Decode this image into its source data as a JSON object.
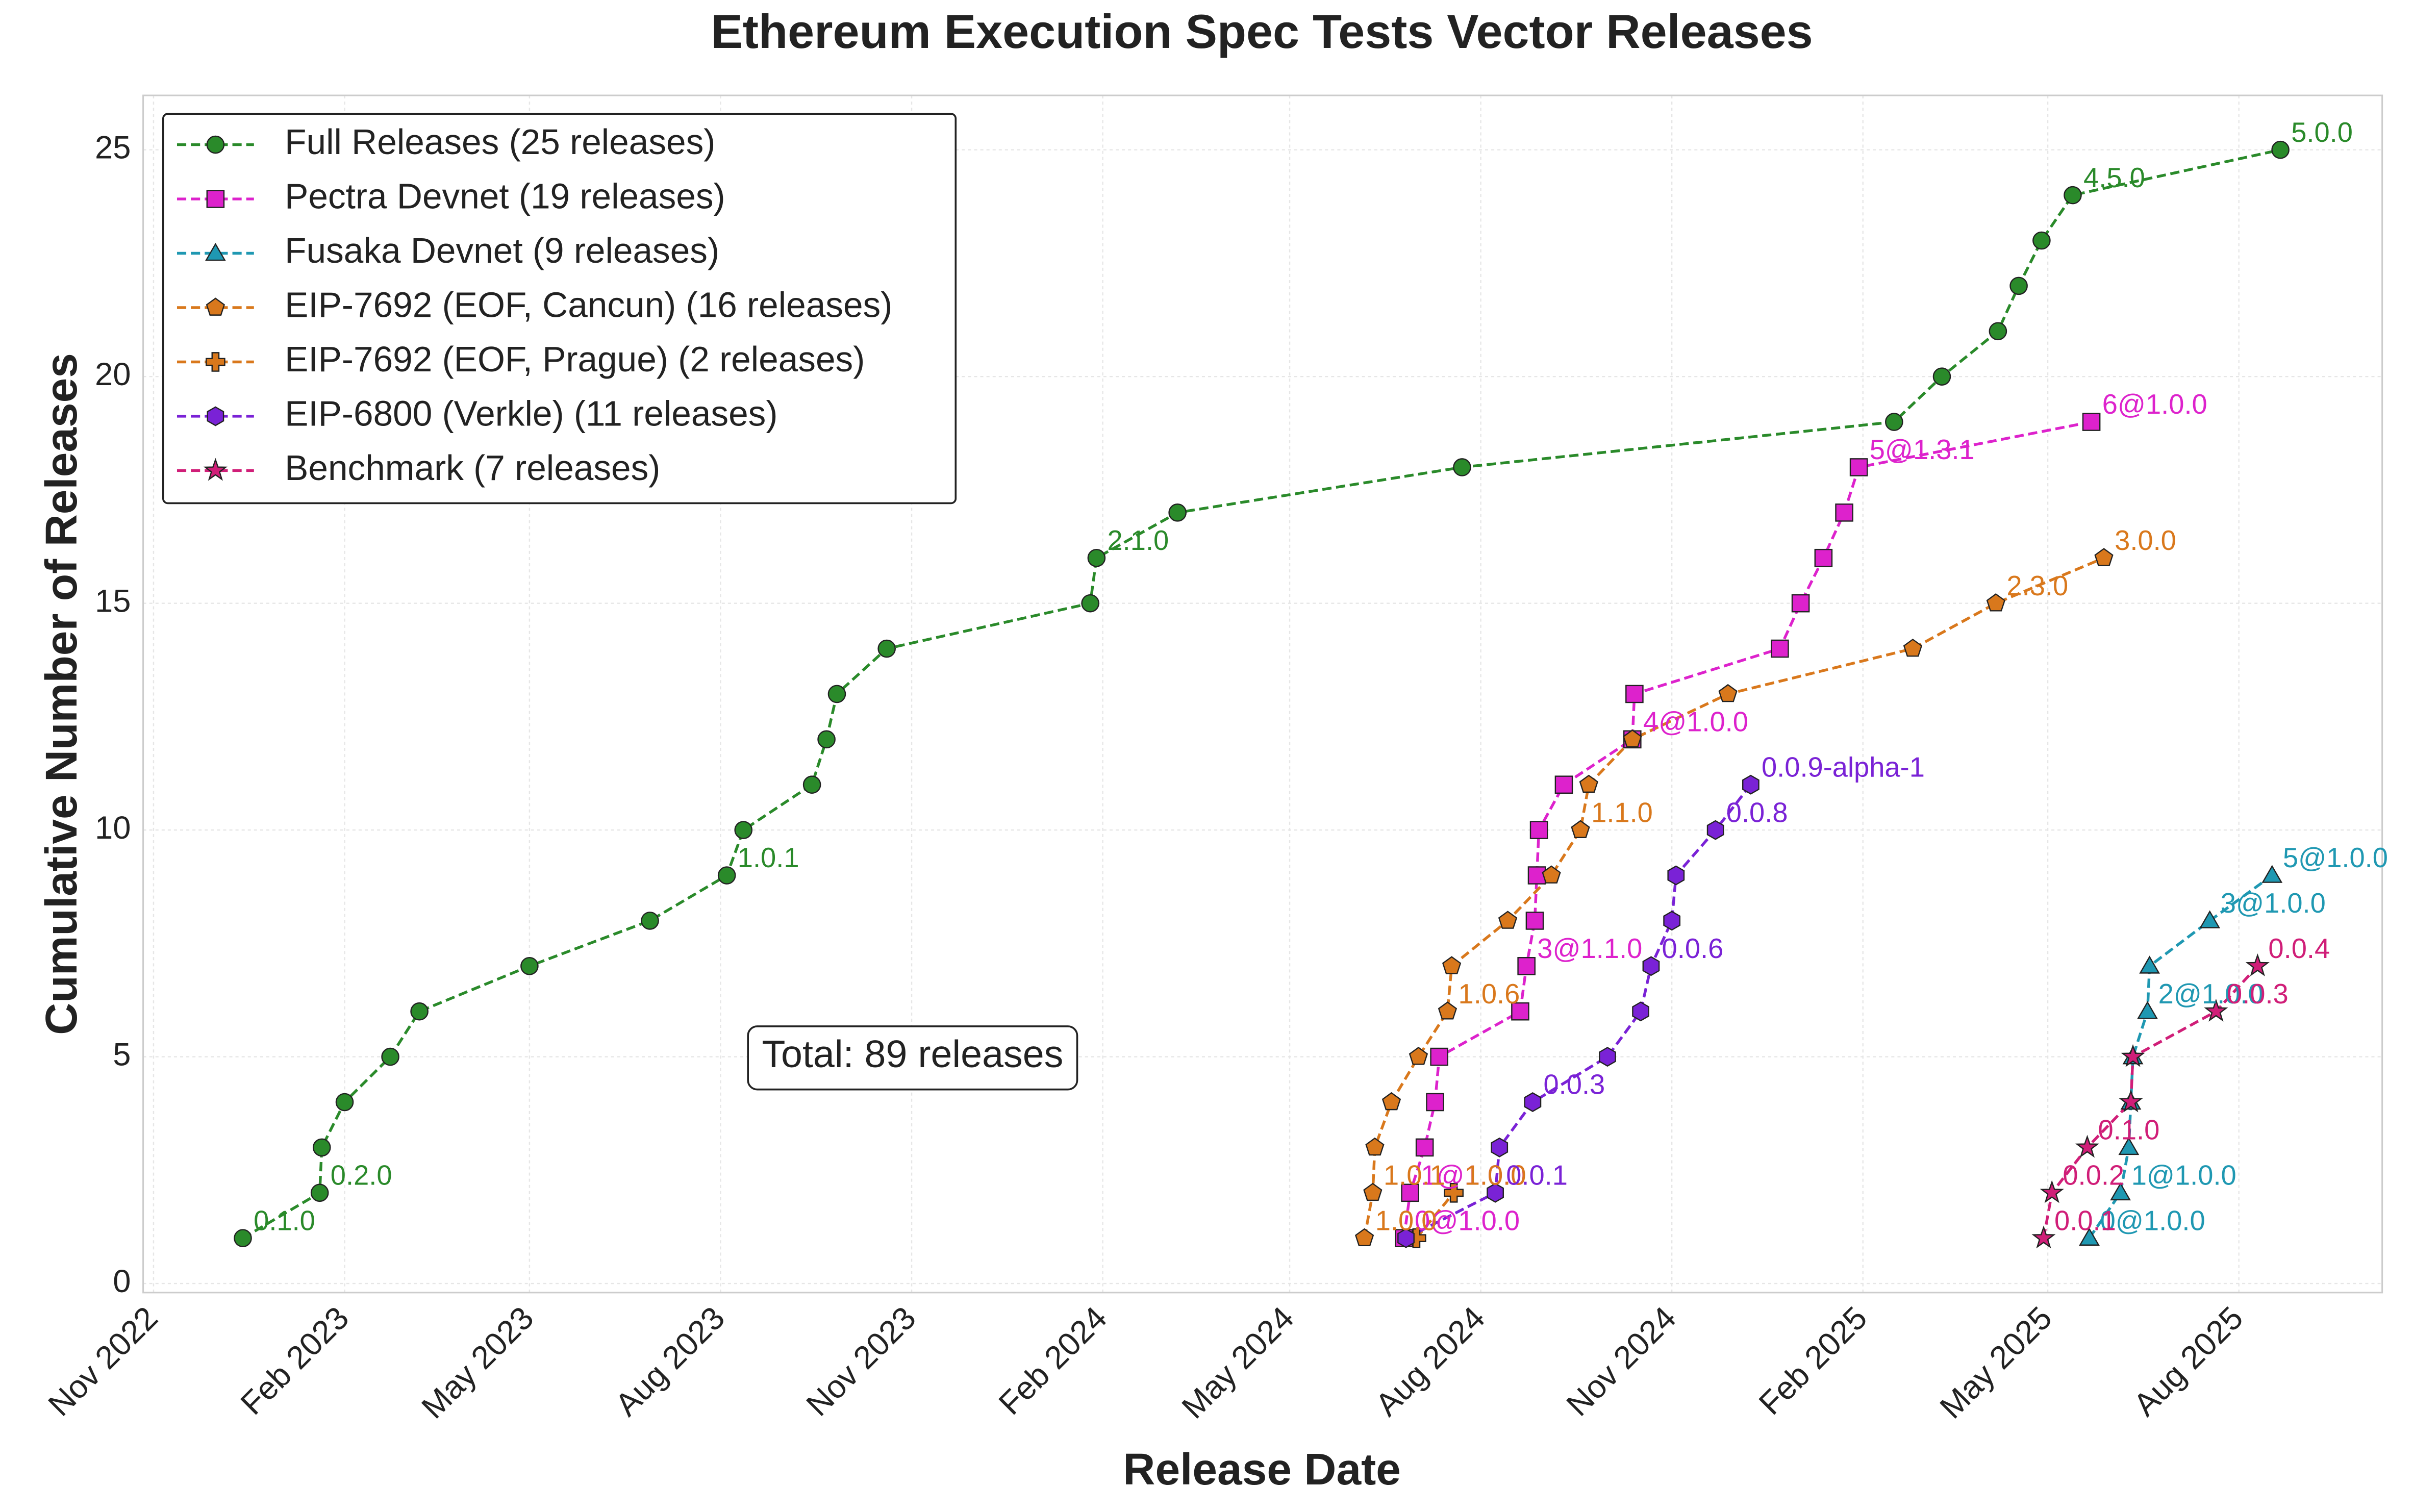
{
  "chart_data": {
    "type": "line",
    "title": "Ethereum Execution Spec Tests Vector Releases",
    "xlabel": "Release Date",
    "ylabel": "Cumulative Number of Releases",
    "annotation": "Total: 89 releases",
    "grid": true,
    "legend": "upper left",
    "xlim": [
      "2022-10-27",
      "2025-10-09"
    ],
    "ylim": [
      -0.2,
      26.2
    ],
    "xticks": [
      {
        "value": "2022-11-01",
        "label": "Nov 2022"
      },
      {
        "value": "2023-02-01",
        "label": "Feb 2023"
      },
      {
        "value": "2023-05-01",
        "label": "May 2023"
      },
      {
        "value": "2023-08-01",
        "label": "Aug 2023"
      },
      {
        "value": "2023-11-01",
        "label": "Nov 2023"
      },
      {
        "value": "2024-02-01",
        "label": "Feb 2024"
      },
      {
        "value": "2024-05-01",
        "label": "May 2024"
      },
      {
        "value": "2024-08-01",
        "label": "Aug 2024"
      },
      {
        "value": "2024-11-01",
        "label": "Nov 2024"
      },
      {
        "value": "2025-02-01",
        "label": "Feb 2025"
      },
      {
        "value": "2025-05-01",
        "label": "May 2025"
      },
      {
        "value": "2025-08-01",
        "label": "Aug 2025"
      }
    ],
    "yticks": [
      0,
      5,
      10,
      15,
      20,
      25
    ],
    "series": [
      {
        "name": "Full Releases (25 releases)",
        "color": "#2a8a2a",
        "marker": "circle",
        "x": [
          "2022-12-14",
          "2023-01-20",
          "2023-01-21",
          "2023-02-01",
          "2023-02-23",
          "2023-03-09",
          "2023-05-01",
          "2023-06-28",
          "2023-08-04",
          "2023-08-12",
          "2023-09-14",
          "2023-09-21",
          "2023-09-26",
          "2023-10-20",
          "2024-01-26",
          "2024-01-29",
          "2024-03-08",
          "2024-07-23",
          "2025-02-16",
          "2025-03-11",
          "2025-04-07",
          "2025-04-17",
          "2025-04-28",
          "2025-05-13",
          "2025-08-21"
        ],
        "values": [
          1,
          2,
          3,
          4,
          5,
          6,
          7,
          8,
          9,
          10,
          11,
          12,
          13,
          14,
          15,
          16,
          17,
          18,
          19,
          20,
          21,
          22,
          23,
          24,
          25
        ],
        "annotations": [
          "0.1.0",
          "0.2.0",
          null,
          null,
          null,
          null,
          null,
          null,
          "1.0.1",
          null,
          null,
          null,
          null,
          null,
          null,
          "2.1.0",
          null,
          null,
          null,
          null,
          null,
          null,
          null,
          "4.5.0",
          "5.0.0"
        ]
      },
      {
        "name": "Pectra Devnet (19 releases)",
        "color": "#dd22cc",
        "marker": "square",
        "x": [
          "2024-06-25",
          "2024-06-28",
          "2024-07-05",
          "2024-07-10",
          "2024-07-12",
          "2024-08-20",
          "2024-08-23",
          "2024-08-27",
          "2024-08-28",
          "2024-08-29",
          "2024-09-10",
          "2024-10-13",
          "2024-10-14",
          "2024-12-23",
          "2025-01-02",
          "2025-01-13",
          "2025-01-23",
          "2025-01-30",
          "2025-05-22"
        ],
        "values": [
          1,
          2,
          3,
          4,
          5,
          6,
          7,
          8,
          9,
          10,
          11,
          12,
          13,
          14,
          15,
          16,
          17,
          18,
          19
        ],
        "annotations": [
          "0@1.0.0",
          "1@1.0.0",
          null,
          null,
          null,
          null,
          "3@1.1.0",
          null,
          null,
          null,
          null,
          "4@1.0.0",
          null,
          null,
          null,
          null,
          null,
          "5@1.3.1",
          "6@1.0.0"
        ]
      },
      {
        "name": "Fusaka Devnet (9 releases)",
        "color": "#1f98b2",
        "marker": "triangle",
        "x": [
          "2025-05-21",
          "2025-06-05",
          "2025-06-09",
          "2025-06-10",
          "2025-06-11",
          "2025-06-18",
          "2025-06-19",
          "2025-07-18",
          "2025-08-17"
        ],
        "values": [
          1,
          2,
          3,
          4,
          5,
          6,
          7,
          8,
          9
        ],
        "annotations": [
          "0@1.0.0",
          "1@1.0.0",
          null,
          null,
          null,
          "2@1.0.0",
          null,
          "3@1.0.0",
          "5@1.0.0"
        ]
      },
      {
        "name": "EIP-7692 (EOF, Cancun) (16 releases)",
        "color": "#d9781c",
        "marker": "pentagon",
        "x": [
          "2024-06-06",
          "2024-06-10",
          "2024-06-11",
          "2024-06-19",
          "2024-07-02",
          "2024-07-16",
          "2024-07-18",
          "2024-08-14",
          "2024-09-04",
          "2024-09-18",
          "2024-09-22",
          "2024-10-13",
          "2024-11-28",
          "2025-02-25",
          "2025-04-06",
          "2025-05-28"
        ],
        "values": [
          1,
          2,
          3,
          4,
          5,
          6,
          7,
          8,
          9,
          10,
          11,
          12,
          13,
          14,
          15,
          16
        ],
        "annotations": [
          "1.0.0",
          "1.0.1",
          null,
          null,
          null,
          "1.0.6",
          null,
          null,
          null,
          "1.1.0",
          null,
          null,
          null,
          null,
          "2.3.0",
          "3.0.0"
        ]
      },
      {
        "name": "EIP-7692 (EOF, Prague) (2 releases)",
        "color": "#d9781c",
        "marker": "plus",
        "x": [
          "2024-07-01",
          "2024-07-19"
        ],
        "values": [
          1,
          2
        ],
        "annotations": [
          null,
          "1.0.0"
        ]
      },
      {
        "name": "EIP-6800 (Verkle) (11 releases)",
        "color": "#7a22d6",
        "marker": "hexagon",
        "x": [
          "2024-06-26",
          "2024-08-08",
          "2024-08-10",
          "2024-08-26",
          "2024-10-01",
          "2024-10-17",
          "2024-10-22",
          "2024-11-01",
          "2024-11-03",
          "2024-11-22",
          "2024-12-09"
        ],
        "values": [
          1,
          2,
          3,
          4,
          5,
          6,
          7,
          8,
          9,
          10,
          11
        ],
        "annotations": [
          null,
          "0.0.1",
          null,
          "0.0.3",
          null,
          null,
          "0.0.6",
          null,
          null,
          "0.0.8",
          "0.0.9-alpha-1"
        ]
      },
      {
        "name": "Benchmark (7 releases)",
        "color": "#d01e78",
        "marker": "star",
        "x": [
          "2025-04-29",
          "2025-05-03",
          "2025-05-20",
          "2025-06-10",
          "2025-06-11",
          "2025-07-21",
          "2025-08-10"
        ],
        "values": [
          1,
          2,
          3,
          4,
          5,
          6,
          7
        ],
        "annotations": [
          "0.0.1",
          "0.0.2",
          "0.1.0",
          null,
          null,
          "0.0.3",
          "0.0.4"
        ]
      }
    ]
  }
}
